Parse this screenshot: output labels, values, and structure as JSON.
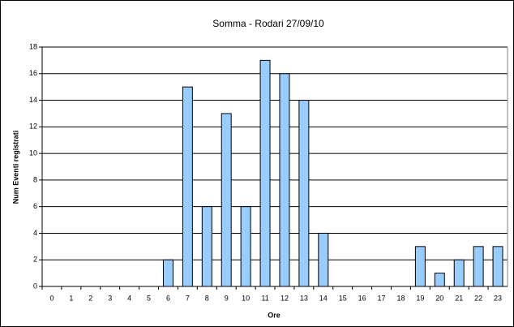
{
  "chart_data": {
    "type": "bar",
    "title": "Somma - Rodari 27/09/10",
    "x_label": "Ore",
    "y_label": "Num Eventi registrati",
    "categories": [
      "0",
      "1",
      "2",
      "3",
      "4",
      "5",
      "6",
      "7",
      "8",
      "9",
      "10",
      "11",
      "12",
      "13",
      "14",
      "15",
      "16",
      "17",
      "18",
      "19",
      "20",
      "21",
      "22",
      "23"
    ],
    "values": [
      0,
      0,
      0,
      0,
      0,
      0,
      2,
      15,
      6,
      13,
      6,
      17,
      16,
      14,
      4,
      0,
      0,
      0,
      0,
      3,
      1,
      2,
      3,
      3
    ],
    "color": "#99ccff",
    "ylim": [
      0,
      18
    ],
    "yticks": [
      0,
      2,
      4,
      6,
      8,
      10,
      12,
      14,
      16,
      18
    ],
    "grid": true
  }
}
